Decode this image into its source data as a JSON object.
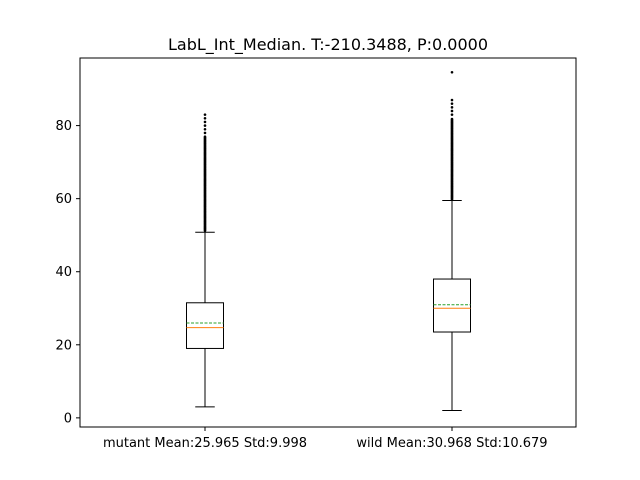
{
  "chart_data": {
    "type": "boxplot",
    "title": "LabL_Int_Median. T:-210.3488, P:0.0000",
    "xlabel": "",
    "ylabel": "",
    "ylim": [
      -2.5,
      98.5
    ],
    "yticks": [
      0,
      20,
      40,
      60,
      80
    ],
    "grid": false,
    "categories": [
      "mutant Mean:25.965 Std:9.998",
      "wild Mean:30.968 Std:10.679"
    ],
    "boxes": [
      {
        "whisker_low": 3,
        "q1": 19,
        "median": 24.7,
        "mean": 25.965,
        "q3": 31.5,
        "whisker_high": 50.8,
        "outliers_range": [
          51.2,
          77
        ],
        "outliers_sparse": [
          78,
          79,
          80,
          81,
          82,
          83
        ]
      },
      {
        "whisker_low": 2,
        "q1": 23.5,
        "median": 30,
        "mean": 30.968,
        "q3": 38,
        "whisker_high": 59.5,
        "outliers_range": [
          59.8,
          82
        ],
        "outliers_sparse": [
          83,
          84,
          85,
          86,
          87,
          94.6
        ]
      }
    ],
    "colors": {
      "median": "#ff7f0e",
      "mean": "#2ca02c",
      "box": "#000000"
    }
  }
}
